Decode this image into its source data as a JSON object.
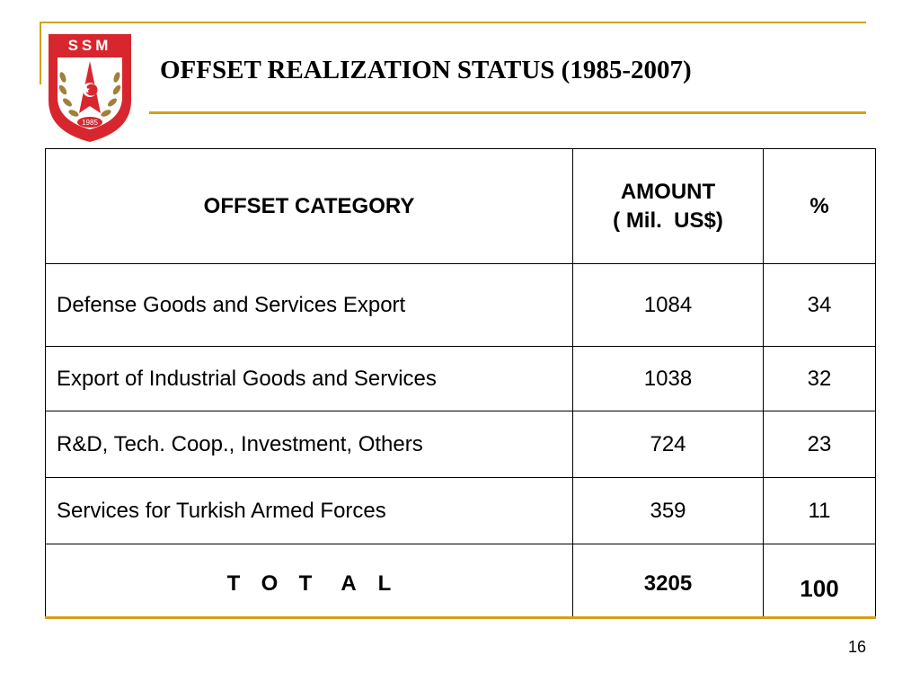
{
  "logo": {
    "org": "SSM",
    "year": "1985"
  },
  "title": "OFFSET REALIZATION STATUS (1985-2007)",
  "table": {
    "headers": {
      "category": "OFFSET CATEGORY",
      "amount_line1": "AMOUNT",
      "amount_line2": "( Mil.  US$)",
      "percent": "%"
    },
    "rows": [
      {
        "category": "Defense Goods and Services Export",
        "amount": "1084",
        "percent": "34"
      },
      {
        "category": "Export of Industrial Goods and Services",
        "amount": "1038",
        "percent": "32"
      },
      {
        "category": "R&D, Tech. Coop., Investment, Others",
        "amount": "724",
        "percent": "23"
      },
      {
        "category": "Services for Turkish Armed Forces",
        "amount": "359",
        "percent": "11"
      }
    ],
    "total": {
      "letters": [
        "T",
        "O",
        "T",
        "A",
        "L"
      ],
      "amount": "3205",
      "percent": "100"
    }
  },
  "page_number": "16",
  "colors": {
    "accent": "#d4a017",
    "logo_red": "#d7262e",
    "wreath": "#a0803a"
  }
}
